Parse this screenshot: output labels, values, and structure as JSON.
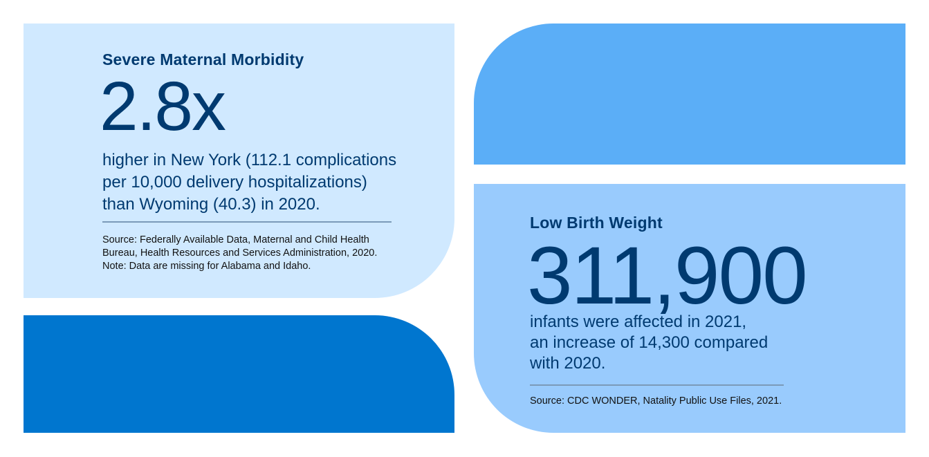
{
  "colors": {
    "panel_light": "#d0e9ff",
    "panel_dark": "#0076cf",
    "panel_mid": "#5baef7",
    "panel_soft": "#99cbfd",
    "text": "#003a70"
  },
  "smm": {
    "title": "Severe Maternal Morbidity",
    "stat": "2.8x",
    "body": [
      "higher in New York (112.1 complications",
      "per 10,000 delivery hospitalizations)",
      "than Wyoming (40.3) in 2020."
    ],
    "source": [
      "Source: Federally Available Data, Maternal and Child Health",
      "Bureau, Health Resources and Services Administration, 2020.",
      "Note: Data are missing for Alabama and Idaho."
    ]
  },
  "lbw": {
    "title": "Low Birth Weight",
    "stat": "311,900",
    "body": [
      "infants were affected in 2021,",
      "an increase of 14,300 compared",
      "with 2020."
    ],
    "source": [
      "Source: CDC WONDER, Natality Public Use Files, 2021."
    ]
  }
}
